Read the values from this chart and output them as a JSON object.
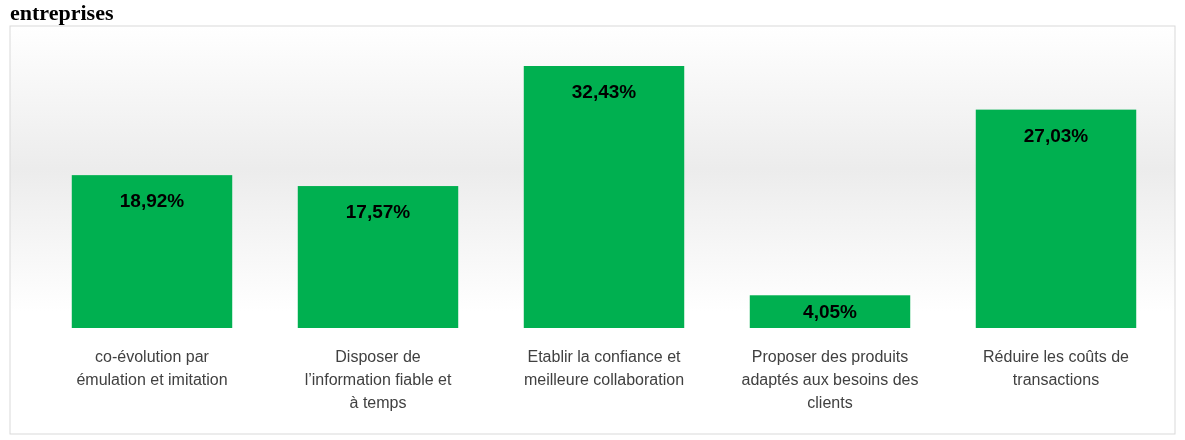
{
  "chart_data": {
    "type": "bar",
    "title": "entreprises",
    "categories": [
      "co-évolution par émulation et imitation",
      "Disposer de l’information fiable et à temps",
      "Etablir la confiance et meilleure collaboration",
      "Proposer des produits adaptés aux besoins des clients",
      "Réduire les coûts de transactions"
    ],
    "values": [
      18.92,
      17.57,
      32.43,
      4.05,
      27.03
    ],
    "value_labels": [
      "18,92%",
      "17,57%",
      "32,43%",
      "4,05%",
      "27,03%"
    ],
    "color": "#00b050"
  }
}
